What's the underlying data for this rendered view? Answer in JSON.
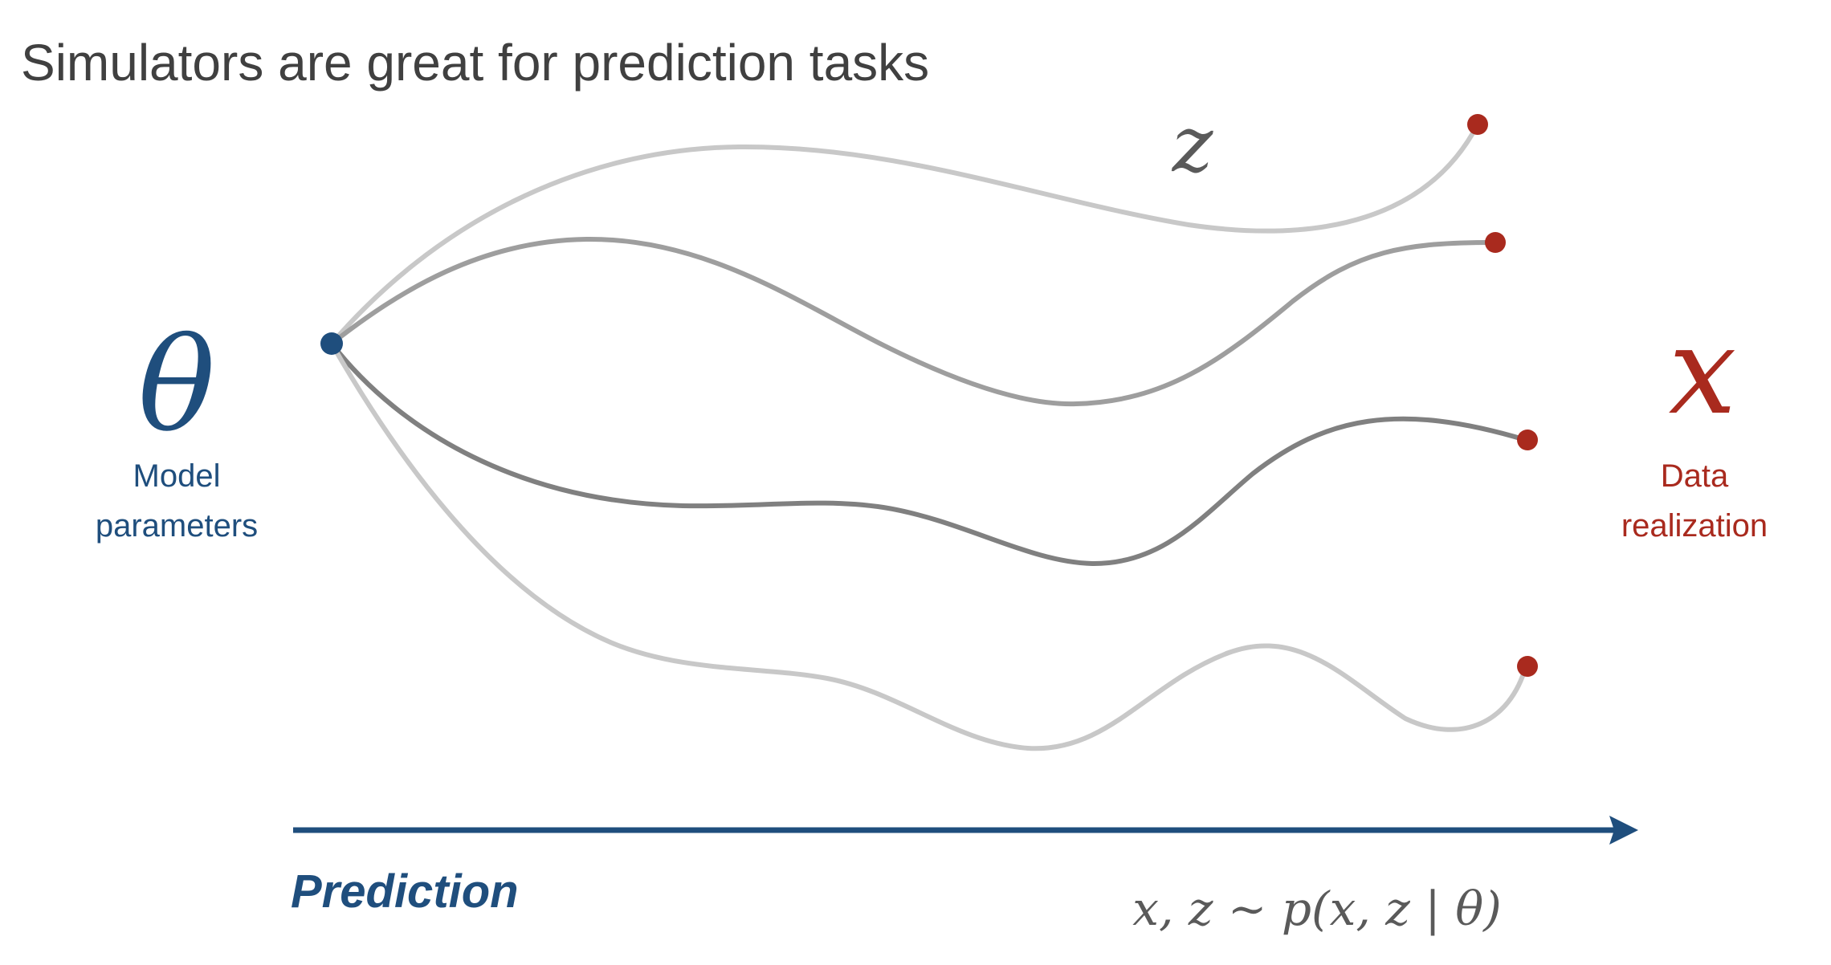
{
  "title": "Simulators are great for prediction tasks",
  "parameters": {
    "symbol": "θ",
    "caption_lines": [
      "Model",
      "parameters"
    ],
    "color": "#1f4e7d"
  },
  "latent": {
    "symbol": "z",
    "color": "#5a5a5a"
  },
  "data": {
    "symbol": "x",
    "caption_lines": [
      "Data",
      "realization"
    ],
    "color": "#a92a1e"
  },
  "arrow": {
    "label": "Prediction",
    "color": "#1f4e7d"
  },
  "formula": "x, z ∼ p(x, z | θ)",
  "paths": [
    {
      "color": "#c8c8c8"
    },
    {
      "color": "#9e9e9e"
    },
    {
      "color": "#808080"
    },
    {
      "color": "#c8c8c8"
    }
  ]
}
